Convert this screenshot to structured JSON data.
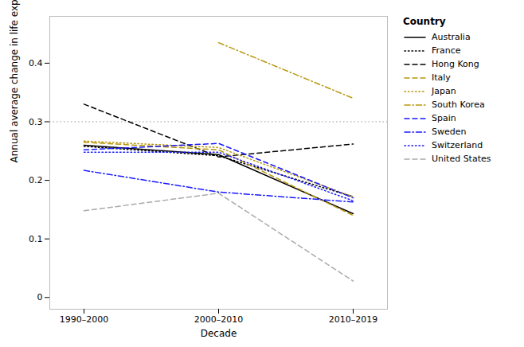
{
  "chart_data": {
    "type": "line",
    "xlabel": "Decade",
    "ylabel": "Annual average change in life expectancy at birth",
    "categories": [
      "1990–2000",
      "2000–2010",
      "2010–2019"
    ],
    "series": [
      {
        "name": "Australia",
        "color": "#000000",
        "line_style": "solid",
        "values": [
          0.26,
          0.244,
          0.143
        ]
      },
      {
        "name": "France",
        "color": "#000000",
        "line_style": "dotted",
        "values": [
          0.258,
          0.242,
          0.172
        ]
      },
      {
        "name": "Hong Kong",
        "color": "#000000",
        "line_style": "dashed",
        "values": [
          0.33,
          0.24,
          0.262
        ]
      },
      {
        "name": "Italy",
        "color": "#b8960c",
        "line_style": "dashed",
        "values": [
          0.265,
          0.252,
          0.14
        ]
      },
      {
        "name": "Japan",
        "color": "#b8960c",
        "line_style": "dotted",
        "values": [
          0.267,
          0.256,
          0.172
        ]
      },
      {
        "name": "South Korea",
        "color": "#b8960c",
        "line_style": "dashdot",
        "values": [
          null,
          0.435,
          0.34
        ]
      },
      {
        "name": "Spain",
        "color": "#1a1aff",
        "line_style": "dashed",
        "values": [
          0.252,
          0.263,
          0.17
        ]
      },
      {
        "name": "Sweden",
        "color": "#1a1aff",
        "line_style": "dashdot",
        "values": [
          0.217,
          0.18,
          0.163
        ]
      },
      {
        "name": "Switzerland",
        "color": "#1a1aff",
        "line_style": "dotted",
        "values": [
          0.248,
          0.248,
          0.165
        ]
      },
      {
        "name": "United States",
        "color": "#aaaaaa",
        "line_style": "dashed",
        "values": [
          0.148,
          0.178,
          0.028
        ]
      }
    ],
    "hline": {
      "value": 0.3,
      "color": "#999999",
      "line_style": "dotted"
    },
    "legend_title": "Country",
    "ylim": [
      -0.02,
      0.48
    ],
    "yticks": [
      0,
      0.1,
      0.2,
      0.3,
      0.4
    ],
    "grid": false
  }
}
